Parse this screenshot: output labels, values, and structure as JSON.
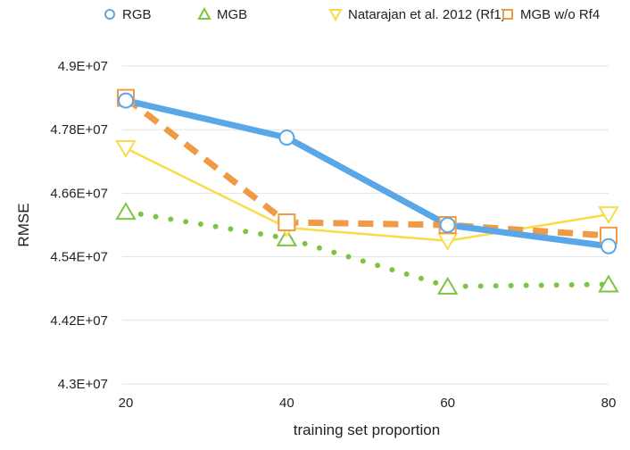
{
  "chart_data": {
    "type": "line",
    "title": "",
    "xlabel": "training set proportion",
    "ylabel": "RMSE",
    "categories": [
      "20",
      "40",
      "60",
      "80"
    ],
    "ylim": [
      43000000,
      49000000
    ],
    "yticks": [
      43000000,
      44200000,
      45400000,
      46600000,
      47800000,
      49000000
    ],
    "ytick_labels": [
      "4.3E+07",
      "4.42E+07",
      "4.54E+07",
      "4.66E+07",
      "4.78E+07",
      "4.9E+07"
    ],
    "grid": "horizontal",
    "legend_position": "top",
    "series": [
      {
        "name": "RGB",
        "values": [
          48350000,
          47650000,
          46000000,
          45600000
        ],
        "color": "#5aa7e8",
        "marker": "circle",
        "line": "solid-thick"
      },
      {
        "name": "MGB",
        "values": [
          46250000,
          45750000,
          44840000,
          44880000
        ],
        "color": "#7dc443",
        "marker": "triangle",
        "line": "dotted"
      },
      {
        "name": "Natarajan et al. 2012 (Rf1)",
        "values": [
          47450000,
          45950000,
          45700000,
          46200000
        ],
        "color": "#f8dc48",
        "marker": "triangle-down",
        "line": "solid-thin"
      },
      {
        "name": "MGB w/o Rf4",
        "values": [
          48400000,
          46050000,
          46000000,
          45800000
        ],
        "color": "#f09a45",
        "marker": "square",
        "line": "dashed"
      }
    ]
  }
}
